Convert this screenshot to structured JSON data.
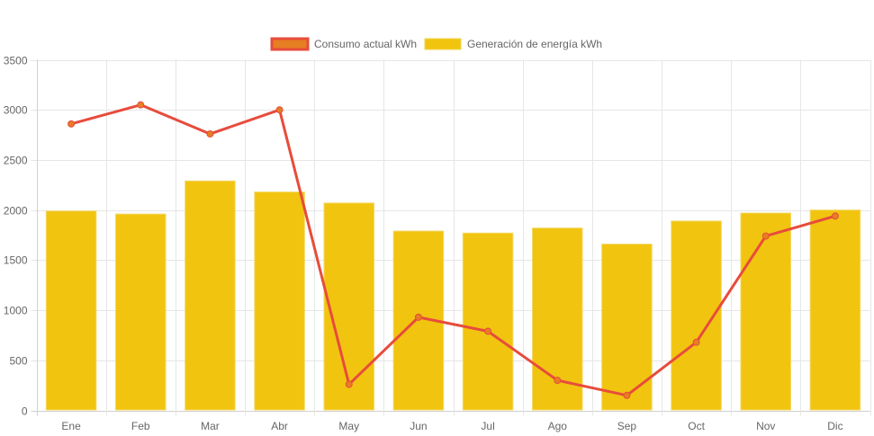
{
  "chart_data": {
    "type": "bar",
    "title": "",
    "xlabel": "",
    "ylabel": "",
    "ylim": [
      0,
      3500
    ],
    "yticks": [
      0,
      500,
      1000,
      1500,
      2000,
      2500,
      3000,
      3500
    ],
    "grid": true,
    "legend_position": "top-center",
    "categories": [
      "Ene",
      "Feb",
      "Mar",
      "Abr",
      "May",
      "Jun",
      "Jul",
      "Ago",
      "Sep",
      "Oct",
      "Nov",
      "Dic"
    ],
    "series": [
      {
        "name": "Consumo actual kWh",
        "type": "line",
        "color": "#e74c3c",
        "point_color": "#e67e22",
        "values": [
          2860,
          3050,
          2760,
          3000,
          260,
          930,
          790,
          300,
          150,
          680,
          1740,
          1940
        ]
      },
      {
        "name": "Generación de energía kWh",
        "type": "bar",
        "color": "#f1c40f",
        "values": [
          1990,
          1960,
          2290,
          2180,
          2070,
          1790,
          1770,
          1820,
          1660,
          1890,
          1970,
          2000
        ]
      }
    ]
  }
}
